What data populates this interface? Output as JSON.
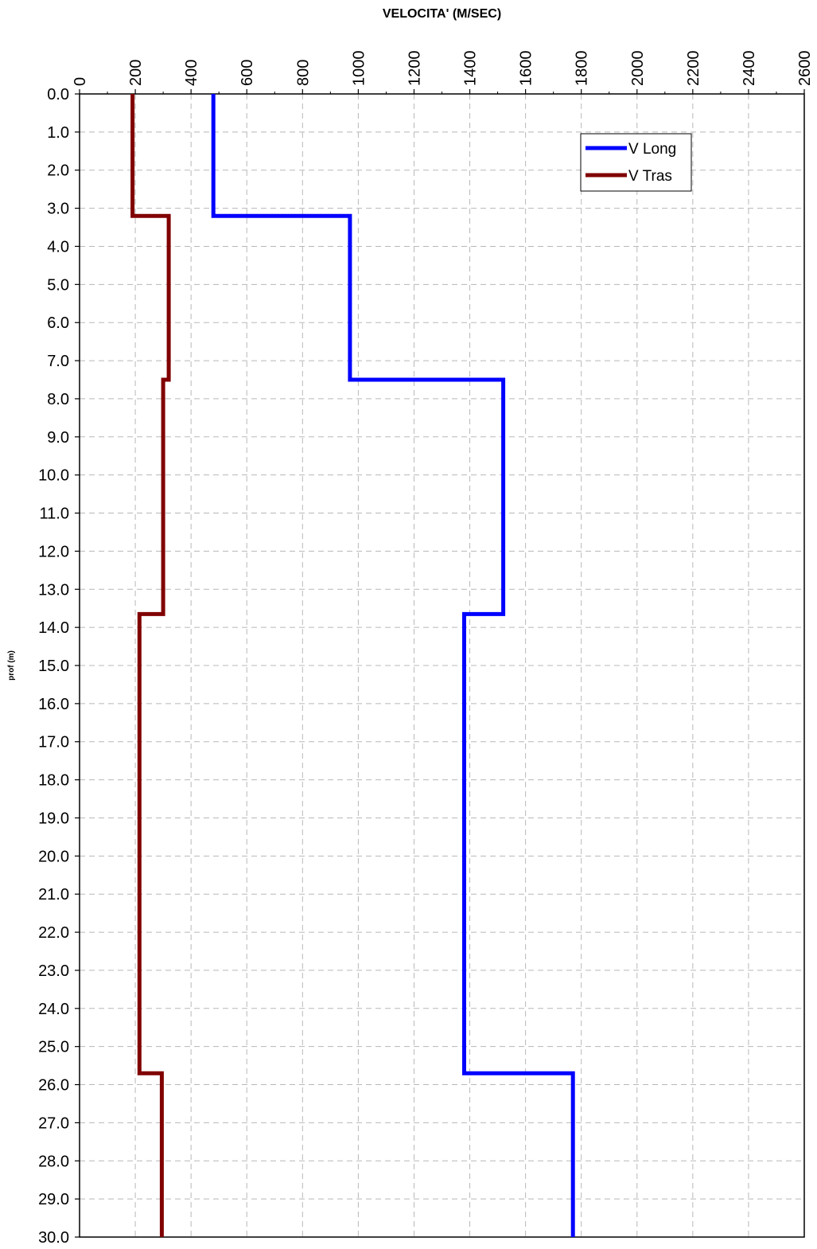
{
  "chart_data": {
    "type": "line",
    "title": "",
    "xlabel": "VELOCITA' (M/SEC)",
    "ylabel": "prof (m)",
    "x_axis_position": "top",
    "y_axis_inverted": true,
    "xlim": [
      0,
      2600
    ],
    "ylim": [
      0,
      30
    ],
    "x_ticks": [
      "0",
      "200",
      "400",
      "600",
      "800",
      "1000",
      "1200",
      "1400",
      "1600",
      "1800",
      "2000",
      "2200",
      "2400",
      "2600"
    ],
    "y_ticks": [
      "0.0",
      "1.0",
      "2.0",
      "3.0",
      "4.0",
      "5.0",
      "6.0",
      "7.0",
      "8.0",
      "9.0",
      "10.0",
      "11.0",
      "12.0",
      "13.0",
      "14.0",
      "15.0",
      "16.0",
      "17.0",
      "18.0",
      "19.0",
      "20.0",
      "21.0",
      "22.0",
      "23.0",
      "24.0",
      "25.0",
      "26.0",
      "27.0",
      "28.0",
      "29.0",
      "30.0"
    ],
    "grid": true,
    "legend_position": "top-right",
    "series": [
      {
        "name": "V Long",
        "color": "#0000ff",
        "points": [
          [
            480,
            0
          ],
          [
            480,
            3.2
          ],
          [
            970,
            3.2
          ],
          [
            970,
            7.5
          ],
          [
            1520,
            7.5
          ],
          [
            1520,
            13.65
          ],
          [
            1380,
            13.65
          ],
          [
            1380,
            25.7
          ],
          [
            1770,
            25.7
          ],
          [
            1770,
            30
          ]
        ]
      },
      {
        "name": "V Tras",
        "color": "#800000",
        "points": [
          [
            190,
            0
          ],
          [
            190,
            3.2
          ],
          [
            320,
            3.2
          ],
          [
            320,
            7.5
          ],
          [
            300,
            7.5
          ],
          [
            300,
            13.65
          ],
          [
            215,
            13.65
          ],
          [
            215,
            25.7
          ],
          [
            295,
            25.7
          ],
          [
            295,
            30
          ]
        ]
      }
    ]
  }
}
